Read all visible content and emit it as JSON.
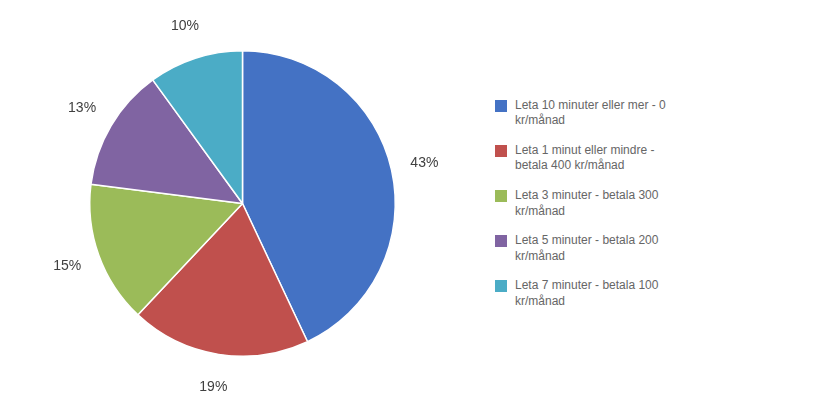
{
  "chart_data": {
    "type": "pie",
    "categories": [
      "Leta 10 minuter eller mer - 0\nkr/månad",
      "Leta 1 minut eller mindre -\nbetala 400 kr/månad",
      "Leta 3 minuter - betala 300\nkr/månad",
      "Leta 5 minuter - betala 200\nkr/månad",
      "Leta 7 minuter -  betala 100\nkr/månad"
    ],
    "values": [
      43,
      19,
      15,
      13,
      10
    ],
    "value_labels": [
      "43%",
      "19%",
      "15%",
      "13%",
      "10%"
    ],
    "colors": [
      "#4472C4",
      "#C0504D",
      "#9BBB59",
      "#8064A2",
      "#4BACC6"
    ],
    "data_labels": true,
    "legend": "right"
  }
}
